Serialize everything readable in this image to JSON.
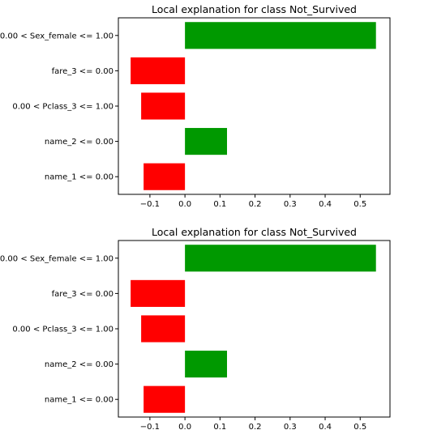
{
  "chart_data": [
    {
      "type": "bar",
      "orientation": "horizontal",
      "title": "Local explanation for class Not_Survived",
      "categories": [
        "0.00 < Sex_female <= 1.00",
        "fare_3 <= 0.00",
        "0.00 < Pclass_3 <= 1.00",
        "name_2 <= 0.00",
        "name_1 <= 0.00"
      ],
      "values": [
        0.545,
        -0.155,
        -0.125,
        0.12,
        -0.118
      ],
      "xlim": [
        -0.19,
        0.585
      ],
      "xticks": [
        -0.1,
        0.0,
        0.1,
        0.2,
        0.3,
        0.4,
        0.5
      ],
      "xtick_labels": [
        "−0.1",
        "0.0",
        "0.1",
        "0.2",
        "0.3",
        "0.4",
        "0.5"
      ],
      "grid": false,
      "colors": {
        "positive": "#009900",
        "negative": "#ff0000"
      }
    },
    {
      "type": "bar",
      "orientation": "horizontal",
      "title": "Local explanation for class Not_Survived",
      "categories": [
        "0.00 < Sex_female <= 1.00",
        "fare_3 <= 0.00",
        "0.00 < Pclass_3 <= 1.00",
        "name_2 <= 0.00",
        "name_1 <= 0.00"
      ],
      "values": [
        0.545,
        -0.155,
        -0.125,
        0.12,
        -0.118
      ],
      "xlim": [
        -0.19,
        0.585
      ],
      "xticks": [
        -0.1,
        0.0,
        0.1,
        0.2,
        0.3,
        0.4,
        0.5
      ],
      "xtick_labels": [
        "−0.1",
        "0.0",
        "0.1",
        "0.2",
        "0.3",
        "0.4",
        "0.5"
      ],
      "grid": false,
      "colors": {
        "positive": "#009900",
        "negative": "#ff0000"
      }
    }
  ]
}
